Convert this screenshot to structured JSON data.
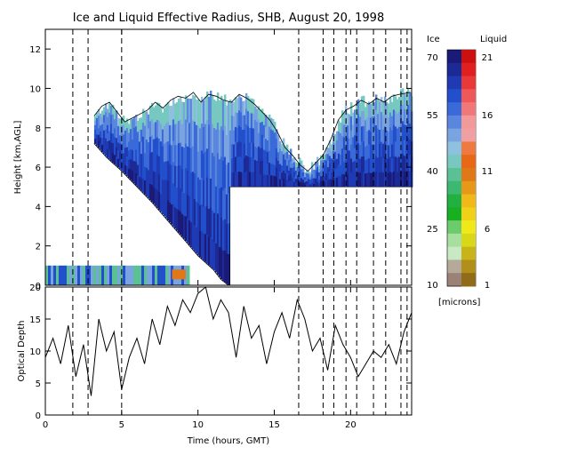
{
  "chart_data": [
    {
      "type": "heatmap",
      "title": "Ice and Liquid Effective Radius, SHB, August 20, 1998",
      "xlim": [
        0,
        24
      ],
      "ylim": [
        0,
        13
      ],
      "ylabel": "Height [km,AGL]",
      "yticks": [
        0,
        2,
        4,
        6,
        8,
        10,
        12
      ],
      "ytick_labels": [
        "0",
        "2",
        "4",
        "6",
        "8",
        "10",
        "12"
      ],
      "xticks": [
        0,
        5,
        10,
        15,
        20
      ],
      "cloud_top_km": [
        [
          3.2,
          8.6
        ],
        [
          3.7,
          9.1
        ],
        [
          4.2,
          9.3
        ],
        [
          4.7,
          8.8
        ],
        [
          5.2,
          8.3
        ],
        [
          5.7,
          8.5
        ],
        [
          6.2,
          8.7
        ],
        [
          6.7,
          8.9
        ],
        [
          7.2,
          9.3
        ],
        [
          7.7,
          9.0
        ],
        [
          8.2,
          9.4
        ],
        [
          8.7,
          9.6
        ],
        [
          9.2,
          9.5
        ],
        [
          9.7,
          9.8
        ],
        [
          10.2,
          9.3
        ],
        [
          10.7,
          9.7
        ],
        [
          11.2,
          9.6
        ],
        [
          11.7,
          9.4
        ],
        [
          12.2,
          9.3
        ],
        [
          12.7,
          9.7
        ],
        [
          13.2,
          9.5
        ],
        [
          13.7,
          9.2
        ],
        [
          14.2,
          8.8
        ],
        [
          14.7,
          8.4
        ],
        [
          15.2,
          7.8
        ],
        [
          15.7,
          7.0
        ],
        [
          16.2,
          6.6
        ],
        [
          16.7,
          6.1
        ],
        [
          17.2,
          5.8
        ],
        [
          17.7,
          6.2
        ],
        [
          18.2,
          6.6
        ],
        [
          18.7,
          7.4
        ],
        [
          19.2,
          8.4
        ],
        [
          19.7,
          8.9
        ],
        [
          20.2,
          9.1
        ],
        [
          20.7,
          9.4
        ],
        [
          21.2,
          9.2
        ],
        [
          21.7,
          9.5
        ],
        [
          22.2,
          9.3
        ],
        [
          22.7,
          9.6
        ],
        [
          23.2,
          9.7
        ],
        [
          23.9,
          9.8
        ]
      ],
      "cloud_base_km": [
        [
          3.2,
          7.2
        ],
        [
          4.0,
          6.5
        ],
        [
          5.0,
          5.8
        ],
        [
          6.0,
          5.0
        ],
        [
          7.0,
          4.2
        ],
        [
          8.0,
          3.3
        ],
        [
          9.0,
          2.4
        ],
        [
          10.0,
          1.5
        ],
        [
          11.0,
          0.8
        ],
        [
          11.5,
          0.3
        ],
        [
          12.0,
          0.0
        ]
      ],
      "missing_region": {
        "x": [
          12.1,
          24
        ],
        "y": [
          0,
          5.0
        ]
      },
      "low_liquid_layer_km": {
        "x": [
          0,
          9.3
        ],
        "y": [
          0.0,
          1.0
        ]
      },
      "dashed_times_hours": [
        1.8,
        2.8,
        5.0,
        16.6,
        18.2,
        18.9,
        19.7,
        20.4,
        21.5,
        22.3,
        23.3,
        23.7
      ]
    },
    {
      "type": "line",
      "ylabel": "Optical Depth",
      "xlabel": "Time (hours, GMT)",
      "xlim": [
        0,
        24
      ],
      "ylim": [
        0,
        20
      ],
      "yticks": [
        0,
        5,
        10,
        15,
        20
      ],
      "ytick_labels": [
        "0",
        "5",
        "10",
        "15",
        "20"
      ],
      "xticks": [
        0,
        5,
        10,
        15,
        20
      ],
      "xtick_labels": [
        "0",
        "5",
        "10",
        "15",
        "20"
      ],
      "x": [
        0.0,
        0.5,
        1.0,
        1.5,
        2.0,
        2.5,
        3.0,
        3.5,
        4.0,
        4.5,
        5.0,
        5.5,
        6.0,
        6.5,
        7.0,
        7.5,
        8.0,
        8.5,
        9.0,
        9.5,
        10.0,
        10.5,
        11.0,
        11.5,
        12.0,
        12.5,
        13.0,
        13.5,
        14.0,
        14.5,
        15.0,
        15.5,
        16.0,
        16.5,
        17.0,
        17.5,
        18.0,
        18.5,
        19.0,
        19.5,
        20.0,
        20.5,
        21.0,
        21.5,
        22.0,
        22.5,
        23.0,
        23.5,
        24.0
      ],
      "y": [
        9,
        12,
        8,
        14,
        6,
        11,
        3,
        15,
        10,
        13,
        4,
        9,
        12,
        8,
        15,
        11,
        17,
        14,
        18,
        16,
        19,
        20,
        15,
        18,
        16,
        9,
        17,
        12,
        14,
        8,
        13,
        16,
        12,
        18,
        15,
        10,
        12,
        7,
        14,
        11,
        9,
        6,
        8,
        10,
        9,
        11,
        8,
        13,
        16
      ],
      "series": [
        {
          "values_ref": "y"
        }
      ],
      "grid": false
    }
  ],
  "colorbar": {
    "ice_label": "Ice",
    "liquid_label": "Liquid",
    "unit": "[microns]",
    "ice_ticks": [
      "70",
      "55",
      "40",
      "25",
      "10"
    ],
    "liquid_ticks": [
      "21",
      "16",
      "11",
      "6",
      "1"
    ],
    "ice_colors": [
      "#1a1a78",
      "#1c2a96",
      "#1f3bb4",
      "#2250cc",
      "#3a6ad8",
      "#5a86dd",
      "#7aa4e0",
      "#8fc0e0",
      "#76c8c0",
      "#5cc095",
      "#3cb870",
      "#22b040",
      "#18b020",
      "#6ccc6c",
      "#a8dea0",
      "#c9e8c4",
      "#b5aa9a",
      "#9a8276"
    ],
    "liquid_colors": [
      "#cc1010",
      "#e02020",
      "#e83838",
      "#ee5858",
      "#f07878",
      "#f29a9a",
      "#f0a0a0",
      "#ee7a40",
      "#e86818",
      "#e07818",
      "#e89818",
      "#f0b818",
      "#f0d018",
      "#f0e818",
      "#d8d818",
      "#c8b418",
      "#b09018",
      "#906c18"
    ]
  }
}
